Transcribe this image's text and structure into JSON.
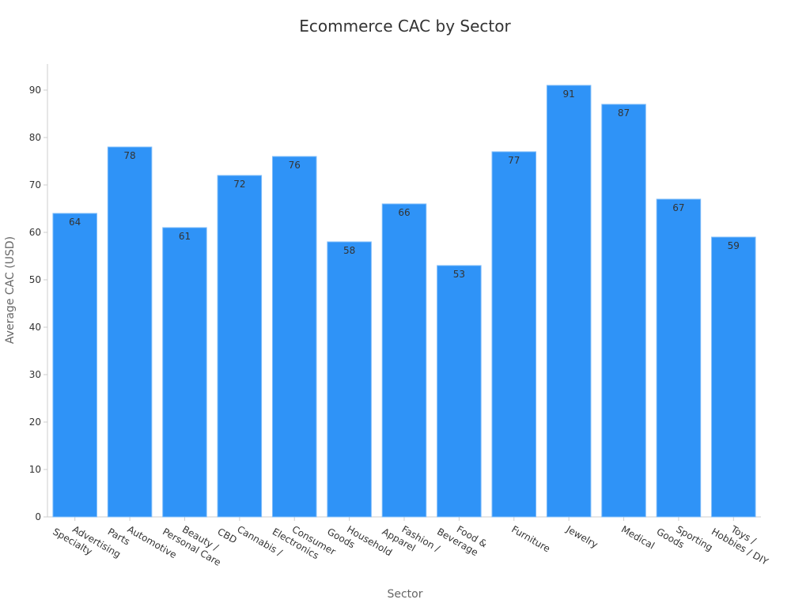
{
  "chart_data": {
    "type": "bar",
    "title": "Ecommerce CAC by Sector",
    "x_label": "Sector",
    "y_label": "Average CAC (USD)",
    "categories": [
      "Advertising Specialty",
      "Automotive Parts",
      "Beauty / Personal Care",
      "Cannabis / CBD",
      "Consumer Electronics",
      "Household Goods",
      "Fashion / Apparel",
      "Food & Beverage",
      "Furniture",
      "Jewelry",
      "Medical",
      "Sporting Goods",
      "Toys / Hobbies / DIY"
    ],
    "values": [
      64,
      78,
      61,
      72,
      76,
      58,
      66,
      53,
      77,
      91,
      87,
      67,
      59
    ],
    "color": "#2f93f7",
    "ylim": [
      0,
      95.5
    ],
    "yticks": [
      0,
      10,
      20,
      30,
      40,
      50,
      60,
      70,
      80,
      90
    ],
    "grid": false
  }
}
